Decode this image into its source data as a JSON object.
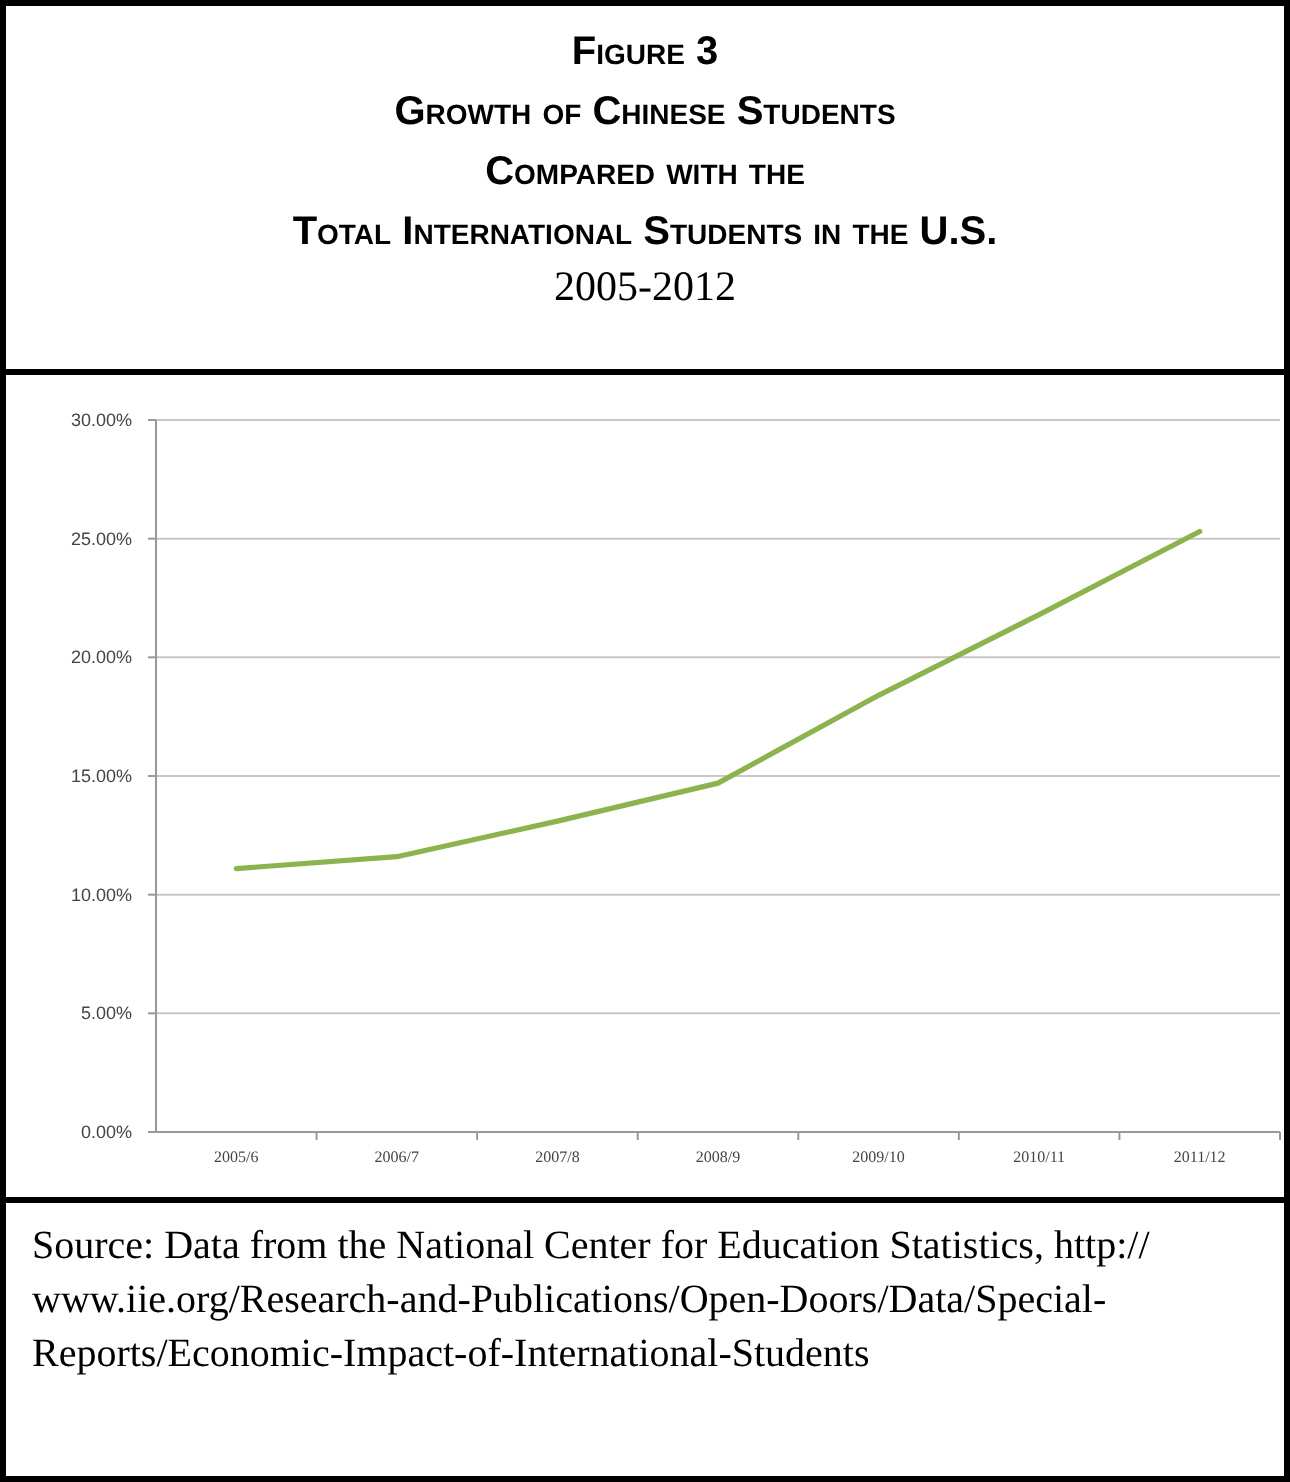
{
  "chart_data": {
    "type": "line",
    "title": "Figure 3\nGrowth of Chinese Students\nCompared with the\nTotal International Students in the U.S.",
    "subtitle": "2005-2012",
    "categories": [
      "2005/6",
      "2006/7",
      "2007/8",
      "2008/9",
      "2009/10",
      "2010/11",
      "2011/12"
    ],
    "series": [
      {
        "color": "#8db34e",
        "values": [
          11.1,
          11.6,
          13.1,
          14.7,
          18.4,
          21.8,
          25.3
        ]
      }
    ],
    "ylim": [
      0,
      30
    ],
    "yticks": [
      {
        "value": 0,
        "label": "0.00%"
      },
      {
        "value": 5,
        "label": "5.00%"
      },
      {
        "value": 10,
        "label": "10.00%"
      },
      {
        "value": 15,
        "label": "15.00%"
      },
      {
        "value": 20,
        "label": "20.00%"
      },
      {
        "value": 25,
        "label": "25.00%"
      },
      {
        "value": 30,
        "label": "30.00%"
      }
    ],
    "grid": "y",
    "legend": false,
    "marker": "none",
    "line_style": "solid",
    "annotations": [
      "Source: Data from the National Center for Education Statistics, http://www.iie.org/Research-and-Publications/Open-Doors/Data/Special-Reports/Economic-Impact-of-International-Students"
    ]
  }
}
